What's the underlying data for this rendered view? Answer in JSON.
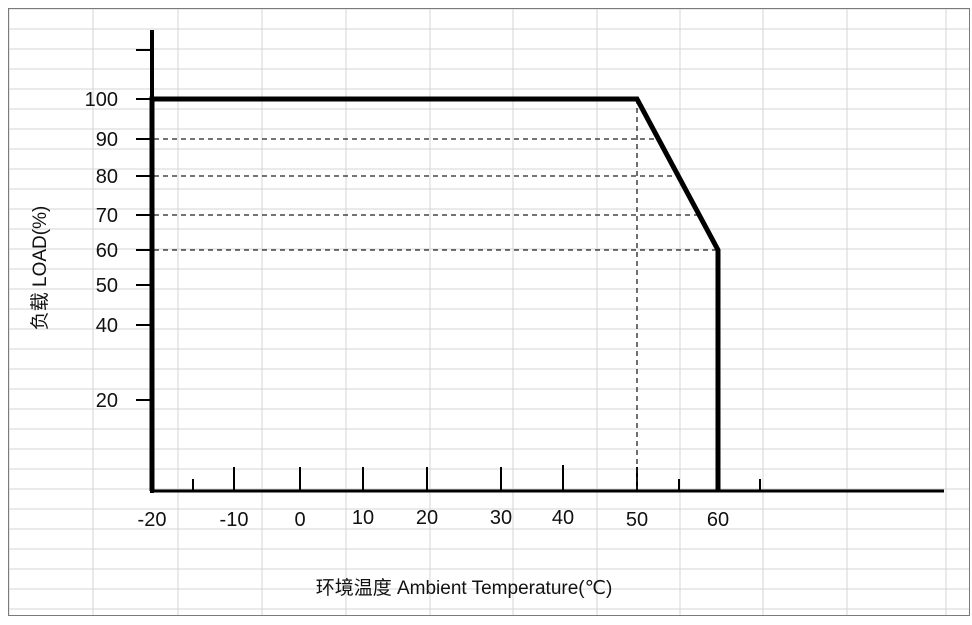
{
  "chart_data": {
    "type": "line",
    "xlabel": "环境温度  Ambient Temperature(℃)",
    "ylabel": "负载 LOAD(%)",
    "x_ticks": [
      -20,
      -10,
      0,
      10,
      20,
      30,
      40,
      50,
      60
    ],
    "y_ticks": [
      20,
      40,
      50,
      60,
      70,
      80,
      90,
      100
    ],
    "x_range": [
      -20,
      60
    ],
    "series": [
      {
        "x": [
          -20,
          -20,
          50,
          60,
          60
        ],
        "y": [
          0,
          100,
          100,
          60,
          0
        ]
      }
    ],
    "reference_lines": [
      {
        "y": 90,
        "x_end": 52.5
      },
      {
        "y": 80,
        "x_end": 55
      },
      {
        "y": 70,
        "x_end": 57.5
      },
      {
        "y": 60,
        "x_end": 60
      },
      {
        "x": 50,
        "y_end": 100
      }
    ],
    "grid": true
  }
}
